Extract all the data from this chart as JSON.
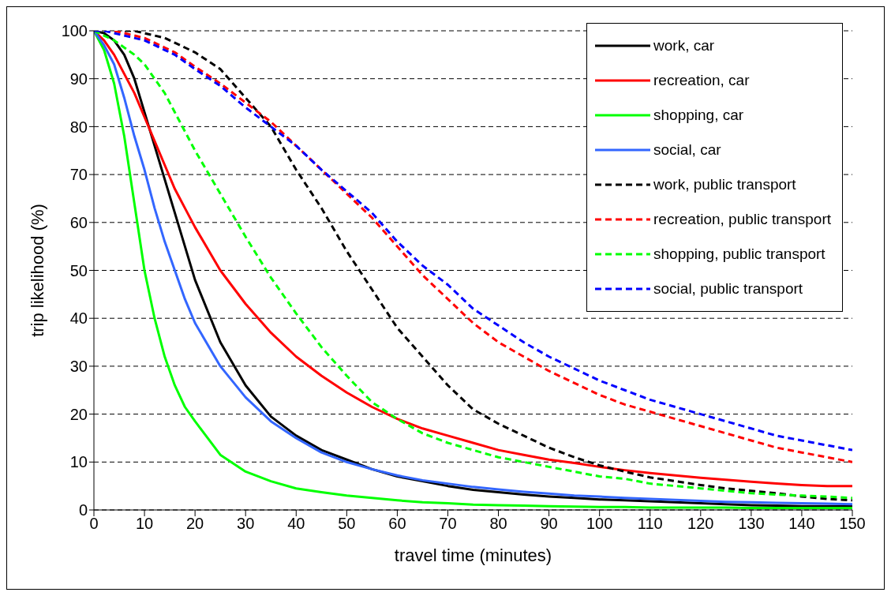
{
  "chart_data": {
    "type": "line",
    "xlabel": "travel time (minutes)",
    "ylabel": "trip likelihood (%)",
    "x": [
      0,
      2,
      4,
      6,
      8,
      10,
      12,
      14,
      16,
      18,
      20,
      25,
      30,
      35,
      40,
      45,
      50,
      55,
      60,
      65,
      70,
      75,
      80,
      85,
      90,
      95,
      100,
      105,
      110,
      115,
      120,
      125,
      130,
      135,
      140,
      145,
      150
    ],
    "xlim": [
      0,
      150
    ],
    "xticks": [
      0,
      10,
      20,
      30,
      40,
      50,
      60,
      70,
      80,
      90,
      100,
      110,
      120,
      130,
      140,
      150
    ],
    "ylim": [
      0,
      100
    ],
    "yticks": [
      0,
      10,
      20,
      30,
      40,
      50,
      60,
      70,
      80,
      90,
      100
    ],
    "grid": "y",
    "legend": "top right",
    "marker": "none",
    "series": [
      {
        "name": "work, car",
        "color": "#000000",
        "line_style": "solid",
        "values": [
          100,
          99.5,
          98,
          95,
          90,
          83,
          76,
          69,
          62,
          55,
          48,
          35,
          26,
          19.5,
          15.5,
          12.5,
          10.5,
          8.5,
          7,
          6,
          5,
          4.2,
          3.7,
          3.2,
          2.8,
          2.5,
          2.2,
          2,
          1.8,
          1.6,
          1.4,
          1.2,
          1,
          0.9,
          0.8,
          0.8,
          0.8
        ]
      },
      {
        "name": "recreation, car",
        "color": "#ff0000",
        "line_style": "solid",
        "values": [
          100,
          98,
          95,
          91,
          87,
          82,
          77,
          72,
          67,
          63,
          59,
          50,
          43,
          37,
          32,
          28,
          24.5,
          21.5,
          19,
          17,
          15.5,
          14,
          12.5,
          11.5,
          10.5,
          9.8,
          9,
          8.3,
          7.7,
          7.2,
          6.7,
          6.3,
          5.9,
          5.5,
          5.2,
          5,
          5
        ]
      },
      {
        "name": "shopping, car",
        "color": "#00ff00",
        "line_style": "solid",
        "values": [
          100,
          96,
          89,
          78,
          64,
          50,
          40,
          32,
          26,
          21.5,
          18.5,
          11.5,
          8,
          6,
          4.5,
          3.7,
          3,
          2.5,
          2,
          1.6,
          1.4,
          1.1,
          1,
          0.9,
          0.8,
          0.7,
          0.6,
          0.6,
          0.5,
          0.5,
          0.5,
          0.5,
          0.4,
          0.4,
          0.4,
          0.4,
          0.4
        ]
      },
      {
        "name": "social, car",
        "color": "#3366ff",
        "line_style": "solid",
        "values": [
          100,
          97,
          93,
          86,
          78,
          71,
          63,
          56,
          50,
          44,
          39,
          30,
          23.5,
          18.5,
          15,
          12,
          10,
          8.5,
          7.2,
          6.2,
          5.5,
          4.8,
          4.3,
          3.8,
          3.4,
          3,
          2.8,
          2.5,
          2.3,
          2.1,
          1.9,
          1.7,
          1.6,
          1.5,
          1.4,
          1.3,
          1.2
        ]
      },
      {
        "name": "work, public transport",
        "color": "#000000",
        "line_style": "dashed",
        "values": [
          100,
          100,
          100,
          100,
          100,
          99.5,
          99,
          98.5,
          97.5,
          96.5,
          95.5,
          92,
          86,
          80,
          71,
          63,
          54,
          46,
          38,
          32,
          26,
          21,
          18,
          15.5,
          13,
          11,
          9.3,
          8,
          6.8,
          6,
          5.2,
          4.5,
          4,
          3.5,
          2.8,
          2.3,
          2
        ]
      },
      {
        "name": "recreation, public transport",
        "color": "#ff0000",
        "line_style": "dashed",
        "values": [
          100,
          100,
          100,
          99.5,
          99,
          98.5,
          97.5,
          96.5,
          95.5,
          94,
          92.5,
          89,
          85,
          81,
          76,
          71,
          66,
          61,
          55,
          49,
          44,
          39,
          35,
          32,
          29,
          26.5,
          24,
          22,
          20.5,
          19,
          17.5,
          16,
          14.5,
          13,
          12,
          11,
          10
        ]
      },
      {
        "name": "shopping, public transport",
        "color": "#00ff00",
        "line_style": "dashed",
        "values": [
          100,
          99,
          98,
          96.5,
          95,
          93,
          90,
          87,
          83,
          79,
          75,
          66,
          57,
          48.5,
          41,
          34,
          28,
          22.5,
          19,
          16,
          14,
          12.5,
          11,
          10,
          9,
          8,
          7,
          6.5,
          5.5,
          5,
          4.5,
          4,
          3.5,
          3.2,
          3,
          2.8,
          2.5
        ]
      },
      {
        "name": "social, public transport",
        "color": "#0000ff",
        "line_style": "dashed",
        "values": [
          100,
          100,
          99.5,
          99,
          98.5,
          98,
          97,
          96,
          95,
          93.5,
          92,
          88.5,
          84,
          80,
          76,
          71,
          66.5,
          62,
          56,
          51,
          47,
          42,
          38.5,
          35,
          32,
          29.5,
          27,
          25,
          23,
          21.5,
          20,
          18.5,
          17,
          15.5,
          14.5,
          13.5,
          12.5
        ]
      }
    ]
  }
}
